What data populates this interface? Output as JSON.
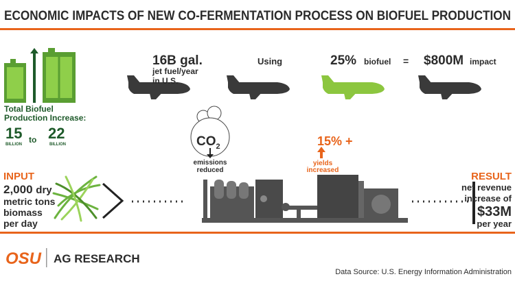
{
  "header": {
    "title": "ECONOMIC IMPACTS OF NEW CO-FERMENTATION PROCESS ON BIOFUEL PRODUCTION"
  },
  "production": {
    "label": [
      "Total Biofuel",
      "Production Increase:"
    ],
    "from": {
      "value": "15",
      "unit": "BILLION"
    },
    "connector": "to",
    "to": {
      "value": "22",
      "unit": "BILLION"
    }
  },
  "fuel": {
    "amount": "16B gal.",
    "amount_detail": [
      "jet fuel/year",
      "in U.S."
    ],
    "using": "Using",
    "share": "25%",
    "share_unit": "biofuel",
    "equals": "=",
    "impact": "$800M",
    "impact_unit": "impact"
  },
  "emissions": {
    "molecule": "CO",
    "subscript": "2",
    "label": [
      "emissions",
      "reduced"
    ]
  },
  "yields": {
    "value": "15% +",
    "label": [
      "yields",
      "increased"
    ]
  },
  "input": {
    "heading": "INPUT",
    "amount": "2,000",
    "lines": [
      "dry",
      "metric tons",
      "biomass",
      "per day"
    ]
  },
  "result": {
    "heading": "RESULT",
    "lines": [
      "net revenue",
      "increase of"
    ],
    "amount": "$33M",
    "period": "per year"
  },
  "footer": {
    "logo": "OSU",
    "unit": "AG RESEARCH",
    "source": "Data Source: U.S. Energy Information Administration"
  }
}
